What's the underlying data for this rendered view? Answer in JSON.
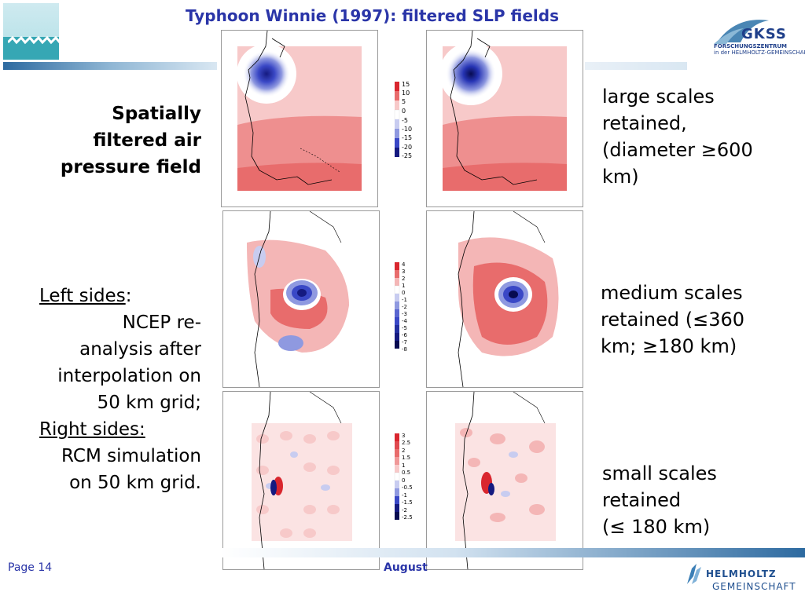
{
  "header": {
    "title": "Typhoon Winnie (1997): filtered SLP fields",
    "logo_left": "wave-logo",
    "logo_right_name": "GKSS",
    "logo_right_line1": "FORSCHUNGSZENTRUM",
    "logo_right_line2": "in der HELMHOLTZ-GEMEINSCHAFT"
  },
  "left_text": {
    "spatial_line1": "Spatially",
    "spatial_line2": "filtered air",
    "spatial_line3": "pressure field",
    "left_sides_label": "Left sides",
    "left_sides_colon": ":",
    "ncep_line1": "NCEP re-",
    "ncep_line2": "analysis after",
    "ncep_line3": "interpolation on",
    "ncep_line4": "50 km grid;",
    "right_sides_label": "Right sides:",
    "rcm_line1": "RCM simulation",
    "rcm_line2": "on 50 km grid."
  },
  "right_text": {
    "large": [
      "large scales",
      "retained,",
      "(diameter ≥600",
      "km)"
    ],
    "medium": [
      "medium scales",
      "retained (≤360",
      "km; ≥180 km)"
    ],
    "small": [
      "small scales",
      "retained",
      "(≤ 180 km)"
    ]
  },
  "colorbars": {
    "large": [
      "15",
      "10",
      "5",
      "0",
      "-5",
      "-10",
      "-15",
      "-20",
      "-25"
    ],
    "medium": [
      "4",
      "3",
      "2",
      "1",
      "0",
      "-1",
      "-2",
      "-3",
      "-4",
      "-5",
      "-6",
      "-7",
      "-8"
    ],
    "small": [
      "3",
      "2.5",
      "2",
      "1.5",
      "1",
      "0.5",
      "0",
      "-0.5",
      "-1",
      "-1.5",
      "-2",
      "-2.5"
    ]
  },
  "footer": {
    "page": "Page 14",
    "conference": "August",
    "helmholtz_name": "HELMHOLTZ",
    "helmholtz_sub": "GEMEINSCHAFT"
  },
  "colors": {
    "title": "#2a35a8",
    "red": "#e0444a",
    "blue": "#1a1f8a"
  }
}
